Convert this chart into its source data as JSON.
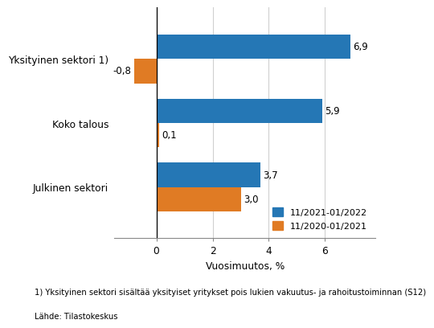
{
  "categories": [
    "Julkinen sektori",
    "Koko talous",
    "Yksityinen sektori 1)"
  ],
  "series": [
    {
      "label": "11/2021-01/2022",
      "color": "#2577B5",
      "values": [
        3.7,
        5.9,
        6.9
      ]
    },
    {
      "label": "11/2020-01/2021",
      "color": "#E07B24",
      "values": [
        3.0,
        0.1,
        -0.8
      ]
    }
  ],
  "xlabel": "Vuosimuutos, %",
  "xlim": [
    -1.5,
    7.8
  ],
  "xticks": [
    0,
    2,
    4,
    6
  ],
  "footnote1": "1) Yksityinen sektori sisältää yksityiset yritykset pois lukien vakuutus- ja rahoitustoiminnan (S12)",
  "footnote2": "Lähde: Tilastokeskus",
  "bar_height": 0.38,
  "background_color": "#ffffff",
  "grid_color": "#d0d0d0"
}
